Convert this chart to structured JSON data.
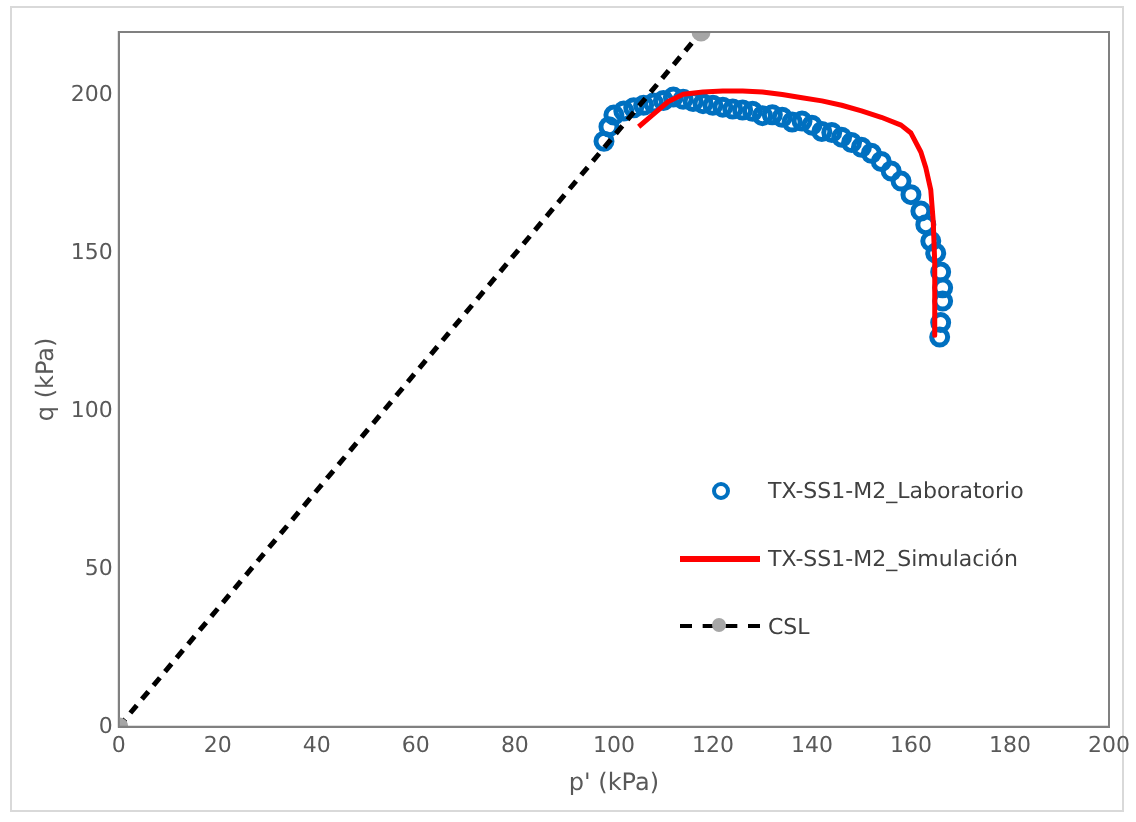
{
  "chart_data": {
    "type": "scatter",
    "xlabel": "p' (kPa)",
    "ylabel": "q (kPa)",
    "xlim": [
      0,
      200
    ],
    "xticks": [
      0,
      20,
      40,
      60,
      80,
      100,
      120,
      140,
      160,
      180,
      200
    ],
    "ylim": [
      0,
      220
    ],
    "yticks": [
      0,
      50,
      100,
      150,
      200
    ],
    "grid": false,
    "legend": "right",
    "series": [
      {
        "name": "TX-SS1-M2_Laboratorio",
        "type": "scatter",
        "marker": "circle",
        "color": "#0070c0",
        "x": [
          98,
          99,
          100,
          102,
          104,
          106,
          108,
          110,
          112,
          114,
          116,
          118,
          120,
          122,
          124,
          126,
          128,
          130,
          132,
          134,
          136,
          138,
          140,
          142,
          144,
          146,
          148,
          150,
          152,
          154,
          156,
          158,
          160,
          162,
          163,
          164,
          165,
          166,
          166.4,
          166.4,
          166,
          165.8
        ],
        "values": [
          185.4,
          190,
          193.7,
          195,
          196,
          196.8,
          197.5,
          198.3,
          199.4,
          198.7,
          198,
          197.3,
          196.8,
          196.2,
          195.6,
          195.3,
          194.9,
          193.5,
          193.8,
          193,
          191.5,
          191.8,
          190.5,
          188.5,
          188.2,
          186.7,
          185,
          183.5,
          181.6,
          179,
          176,
          172.8,
          168.5,
          163.3,
          159,
          153.8,
          150,
          144,
          139,
          134.8,
          128,
          123.4
        ]
      },
      {
        "name": "TX-SS1-M2_Simulación",
        "type": "line",
        "marker": "none",
        "line_style": "solid",
        "color": "#ff0000",
        "x": [
          105,
          108,
          111,
          114,
          118,
          122,
          126,
          130,
          134,
          138,
          142,
          146,
          150,
          154,
          158,
          160,
          162,
          163,
          164,
          164.5,
          164.8,
          164.8
        ],
        "values": [
          190,
          194,
          198,
          200.3,
          201,
          201.3,
          201.3,
          201,
          200.2,
          199.2,
          198.2,
          196.8,
          195,
          193,
          190.5,
          188,
          182,
          177,
          170,
          160,
          147,
          124
        ]
      },
      {
        "name": "CSL",
        "type": "line",
        "marker": "circle",
        "line_style": "dashed",
        "color": "#000000",
        "x": [
          0,
          117.6
        ],
        "values": [
          0,
          220
        ]
      }
    ]
  }
}
